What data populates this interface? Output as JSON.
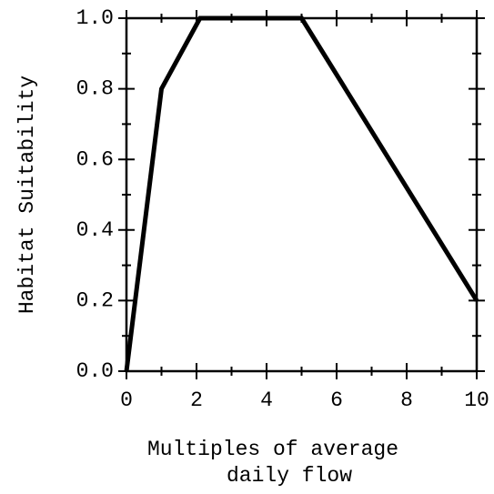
{
  "chart_data": {
    "type": "line",
    "x_label": [
      "Multiples of average",
      "daily flow"
    ],
    "y_label": "Habitat Suitability",
    "x": [
      0,
      1,
      2.1,
      5,
      10
    ],
    "series": [
      {
        "color": "#000000",
        "values": [
          0,
          0.8,
          1.0,
          1.0,
          0.2
        ]
      }
    ],
    "xlim": [
      0,
      10
    ],
    "xticks": [
      0,
      2,
      4,
      6,
      8,
      10
    ],
    "xminor_ticks": [
      1,
      3,
      5,
      7,
      9
    ],
    "ylim": [
      0,
      1
    ],
    "yticks": [
      {
        "value": 0,
        "label": "0.0"
      },
      {
        "value": 0.2,
        "label": "0.2"
      },
      {
        "value": 0.4,
        "label": "0.4"
      },
      {
        "value": 0.6,
        "label": "0.6"
      },
      {
        "value": 0.8,
        "label": "0.8"
      },
      {
        "value": 1,
        "label": "1.0"
      }
    ],
    "yminor_ticks": [
      0.1,
      0.3,
      0.5,
      0.7,
      0.9
    ]
  }
}
